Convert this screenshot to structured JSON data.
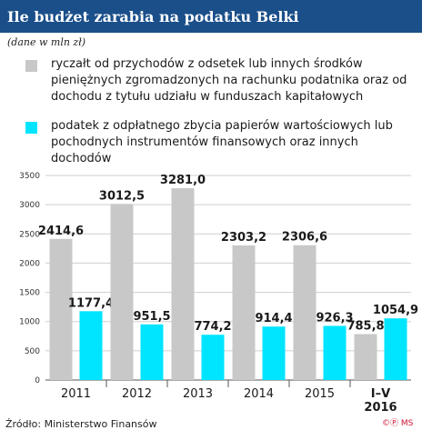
{
  "header": {
    "title": "Ile budżet zarabia na podatku Belki",
    "subtitle": "(dane w mln zł)"
  },
  "legend": [
    {
      "label": "ryczałt od przychodów z odsetek lub innych środków pieniężnych zgromadzonych na rachunku podatnika oraz od dochodu z tytułu udziału w funduszach kapitałowych",
      "color": "#c8c8c8"
    },
    {
      "label": "podatek z odpłatnego zbycia papierów wartościowych lub pochodnych instrumentów finansowych oraz innych dochodów",
      "color": "#00e5ff"
    }
  ],
  "footer": {
    "source": "Źródło: Ministerstwo Finansów",
    "logo": "MS"
  },
  "chart_data": {
    "type": "bar",
    "title": "Ile budżet zarabia na podatku Belki",
    "subtitle": "(dane w mln zł)",
    "categories": [
      "2011",
      "2012",
      "2013",
      "2014",
      "2015",
      "I–V 2016"
    ],
    "series": [
      {
        "name": "ryczałt od przychodów z odsetek lub innych środków pieniężnych zgromadzonych na rachunku podatnika oraz od dochodu z tytułu udziału w funduszach kapitałowych",
        "values": [
          2414.6,
          3012.5,
          3281.0,
          2303.2,
          2306.6,
          785.8
        ],
        "labels": [
          "2414,6",
          "3012,5",
          "3281,0",
          "2303,2",
          "2306,6",
          "785,8"
        ],
        "color": "#c8c8c8"
      },
      {
        "name": "podatek z odpłatnego zbycia papierów wartościowych lub pochodnych instrumentów finansowych oraz innych dochodów",
        "values": [
          1177.4,
          951.5,
          774.2,
          914.4,
          926.3,
          1054.9
        ],
        "labels": [
          "1177,4",
          "951,5",
          "774,2",
          "914,4",
          "926,3",
          "1054,9"
        ],
        "color": "#00e5ff"
      }
    ],
    "ylim": [
      0,
      3500
    ],
    "yticks": [
      0,
      500,
      1000,
      1500,
      2000,
      2500,
      3000,
      3500
    ],
    "grid": true,
    "legend_position": "top"
  }
}
